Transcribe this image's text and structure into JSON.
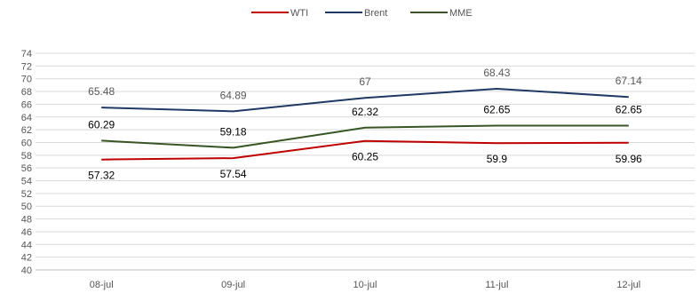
{
  "chart_data": {
    "type": "line",
    "categories": [
      "08-jul",
      "09-jul",
      "10-jul",
      "11-jul",
      "12-jul"
    ],
    "series": [
      {
        "name": "WTI",
        "color": "#c00000",
        "values": [
          57.32,
          57.54,
          60.25,
          59.9,
          59.96
        ],
        "labels": [
          "57.32",
          "57.54",
          "60.25",
          "59.9",
          "59.96"
        ]
      },
      {
        "name": "Brent",
        "color": "#1f3864",
        "values": [
          65.48,
          64.89,
          67,
          68.43,
          67.14
        ],
        "labels": [
          "65.48",
          "64.89",
          "67",
          "68.43",
          "67.14"
        ]
      },
      {
        "name": "MME",
        "color": "#375623",
        "values": [
          60.29,
          59.18,
          62.32,
          62.65,
          62.65
        ],
        "labels": [
          "60.29",
          "59.18",
          "62.32",
          "62.65",
          "62.65"
        ]
      }
    ],
    "ylim": [
      40,
      74
    ],
    "ytick_step": 2,
    "grid": true,
    "legend_position": "top-center",
    "title": "",
    "xlabel": "",
    "ylabel": ""
  }
}
